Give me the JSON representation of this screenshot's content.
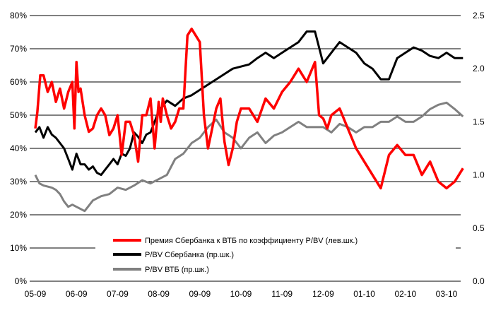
{
  "chart_data": {
    "type": "line",
    "x_tick_labels": [
      "05-09",
      "06-09",
      "07-09",
      "08-09",
      "09-09",
      "10-09",
      "11-09",
      "12-09",
      "01-10",
      "02-10",
      "03-10"
    ],
    "y_left": {
      "ticks": [
        "0%",
        "10%",
        "20%",
        "30%",
        "40%",
        "50%",
        "60%",
        "70%",
        "80%"
      ],
      "ylim": [
        0,
        80
      ]
    },
    "y_right": {
      "ticks": [
        "0.0",
        "0.5",
        "1.0",
        "1.5",
        "2.0",
        "2.5"
      ],
      "ylim": [
        0,
        2.5
      ]
    },
    "grid": "horizontal",
    "legend_position": "bottom-center",
    "series": [
      {
        "name": "Премия Сбербанка к ВТБ по коэффициенту P/BV (лев.шк.)",
        "axis": "left",
        "color": "#ff0000",
        "x": [
          0,
          0.05,
          0.12,
          0.2,
          0.3,
          0.4,
          0.5,
          0.6,
          0.7,
          0.8,
          0.9,
          0.95,
          1.0,
          1.05,
          1.1,
          1.2,
          1.3,
          1.4,
          1.5,
          1.6,
          1.7,
          1.8,
          1.9,
          2.0,
          2.1,
          2.2,
          2.3,
          2.4,
          2.5,
          2.6,
          2.7,
          2.8,
          2.9,
          3.0,
          3.05,
          3.1,
          3.2,
          3.3,
          3.4,
          3.5,
          3.6,
          3.7,
          3.8,
          3.9,
          4.0,
          4.1,
          4.2,
          4.3,
          4.4,
          4.5,
          4.6,
          4.7,
          4.8,
          4.9,
          5.0,
          5.2,
          5.4,
          5.6,
          5.8,
          6.0,
          6.2,
          6.4,
          6.6,
          6.8,
          6.9,
          7.0,
          7.1,
          7.2,
          7.4,
          7.6,
          7.8,
          8.0,
          8.2,
          8.4,
          8.6,
          8.8,
          9.0,
          9.2,
          9.4,
          9.6,
          9.8,
          10.0,
          10.2,
          10.4
        ],
        "y": [
          46,
          51,
          62,
          62,
          57,
          60,
          54,
          58,
          52,
          57,
          60,
          46,
          66,
          57,
          58,
          50,
          45,
          46,
          50,
          52,
          50,
          44,
          46,
          50,
          38,
          48,
          48,
          44,
          36,
          50,
          50,
          55,
          40,
          54,
          48,
          55,
          50,
          46,
          48,
          52,
          52,
          74,
          76,
          74,
          72,
          50,
          40,
          46,
          52,
          55,
          42,
          35,
          40,
          48,
          52,
          52,
          48,
          55,
          52,
          57,
          60,
          64,
          60,
          66,
          50,
          49,
          46,
          50,
          52,
          46,
          40,
          36,
          32,
          28,
          38,
          41,
          38,
          38,
          32,
          36,
          30,
          28,
          30,
          34
        ]
      },
      {
        "name": "P/BV Сбербанка (пр.шк.)",
        "axis": "right",
        "color": "#000000",
        "x": [
          0,
          0.1,
          0.2,
          0.3,
          0.4,
          0.5,
          0.6,
          0.7,
          0.8,
          0.9,
          1.0,
          1.1,
          1.2,
          1.3,
          1.4,
          1.5,
          1.6,
          1.7,
          1.8,
          1.9,
          2.0,
          2.1,
          2.2,
          2.3,
          2.4,
          2.5,
          2.6,
          2.7,
          2.8,
          2.9,
          3.0,
          3.2,
          3.4,
          3.6,
          3.8,
          4.0,
          4.2,
          4.4,
          4.6,
          4.8,
          5.0,
          5.2,
          5.4,
          5.6,
          5.8,
          6.0,
          6.2,
          6.4,
          6.6,
          6.8,
          7.0,
          7.2,
          7.4,
          7.6,
          7.8,
          8.0,
          8.2,
          8.4,
          8.6,
          8.8,
          9.0,
          9.2,
          9.4,
          9.6,
          9.8,
          10.0,
          10.2,
          10.4
        ],
        "y": [
          1.4,
          1.45,
          1.35,
          1.45,
          1.38,
          1.35,
          1.3,
          1.25,
          1.15,
          1.05,
          1.2,
          1.1,
          1.1,
          1.05,
          1.08,
          1.02,
          1.0,
          1.05,
          1.1,
          1.15,
          1.1,
          1.2,
          1.18,
          1.25,
          1.4,
          1.36,
          1.3,
          1.38,
          1.4,
          1.5,
          1.6,
          1.7,
          1.65,
          1.72,
          1.75,
          1.8,
          1.85,
          1.9,
          1.95,
          2.0,
          2.02,
          2.04,
          2.1,
          2.15,
          2.1,
          2.15,
          2.2,
          2.25,
          2.35,
          2.35,
          2.05,
          2.15,
          2.25,
          2.2,
          2.15,
          2.05,
          2.0,
          1.9,
          1.9,
          2.1,
          2.15,
          2.2,
          2.17,
          2.12,
          2.1,
          2.15,
          2.1,
          2.1
        ]
      },
      {
        "name": "P/BV ВТБ (пр.шк.)",
        "axis": "right",
        "color": "#808080",
        "x": [
          0,
          0.1,
          0.2,
          0.3,
          0.4,
          0.5,
          0.6,
          0.7,
          0.8,
          0.9,
          1.0,
          1.2,
          1.4,
          1.6,
          1.8,
          2.0,
          2.2,
          2.4,
          2.6,
          2.8,
          3.0,
          3.2,
          3.4,
          3.6,
          3.8,
          4.0,
          4.2,
          4.4,
          4.6,
          4.8,
          5.0,
          5.2,
          5.4,
          5.6,
          5.8,
          6.0,
          6.2,
          6.4,
          6.6,
          6.8,
          7.0,
          7.2,
          7.4,
          7.6,
          7.8,
          8.0,
          8.2,
          8.4,
          8.6,
          8.8,
          9.0,
          9.2,
          9.4,
          9.6,
          9.8,
          10.0,
          10.2,
          10.4
        ],
        "y": [
          1.0,
          0.92,
          0.9,
          0.89,
          0.88,
          0.86,
          0.82,
          0.75,
          0.7,
          0.72,
          0.7,
          0.66,
          0.76,
          0.8,
          0.82,
          0.88,
          0.86,
          0.9,
          0.95,
          0.92,
          0.96,
          1.0,
          1.15,
          1.2,
          1.3,
          1.35,
          1.45,
          1.52,
          1.4,
          1.35,
          1.25,
          1.35,
          1.4,
          1.3,
          1.37,
          1.4,
          1.45,
          1.5,
          1.45,
          1.45,
          1.45,
          1.4,
          1.48,
          1.45,
          1.4,
          1.45,
          1.45,
          1.5,
          1.5,
          1.55,
          1.5,
          1.5,
          1.55,
          1.62,
          1.66,
          1.68,
          1.62,
          1.55
        ]
      }
    ]
  }
}
